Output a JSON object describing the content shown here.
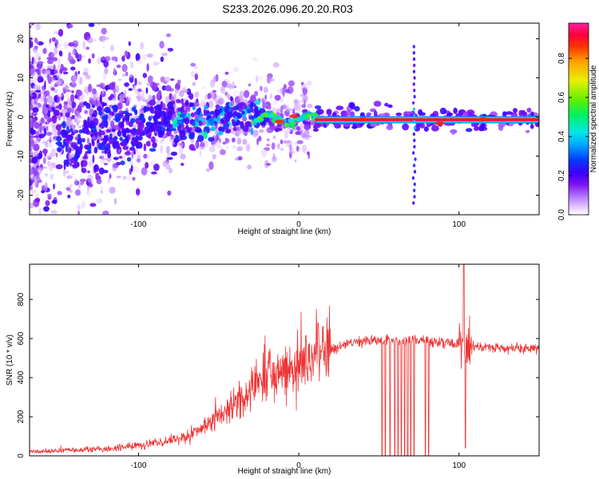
{
  "figure_title": "S233.2026.096.20.20.R03",
  "chart_data": [
    {
      "type": "heatmap",
      "id": "spectrogram",
      "xlabel": "Height of straight line (km)",
      "ylabel": "Frequency (Hz)",
      "xlim": [
        -168,
        150
      ],
      "ylim": [
        -25,
        24
      ],
      "xticks": [
        -100,
        0,
        100
      ],
      "yticks": [
        -20,
        -10,
        0,
        10,
        20
      ],
      "colorbar": {
        "label": "Normalized spectral amplitude",
        "range": [
          0.0,
          0.98
        ],
        "ticks": [
          0.0,
          0.2,
          0.4,
          0.6,
          0.8
        ],
        "colors": [
          "#ffffff",
          "#e6c8ff",
          "#b070ff",
          "#7a10f0",
          "#3a00ff",
          "#0040ff",
          "#00a0ff",
          "#00e8e8",
          "#00f060",
          "#60f000",
          "#e8f000",
          "#ffa000",
          "#ff3000",
          "#ff0040",
          "#ff20a0"
        ]
      },
      "features": {
        "carrier_line": {
          "x_start": 10,
          "x_end": 150,
          "frequency": -0.7,
          "amplitude": 0.95
        },
        "vertical_artifact": {
          "x": 72,
          "frequency_range": [
            -22,
            19
          ]
        },
        "scatter_region": {
          "x_range": [
            -168,
            -30
          ],
          "frequency_spread": 24
        }
      }
    },
    {
      "type": "line",
      "id": "snr",
      "xlabel": "Height of straight line (km)",
      "ylabel": "SNR (10 * v/v)",
      "xlim": [
        -168,
        150
      ],
      "ylim": [
        0,
        980
      ],
      "xticks": [
        -100,
        0,
        100
      ],
      "yticks": [
        0,
        200,
        400,
        600,
        800
      ],
      "series": [
        {
          "name": "SNR",
          "color": "#ee3333",
          "x": [
            -168,
            -150,
            -120,
            -90,
            -70,
            -55,
            -45,
            -35,
            -25,
            -18,
            -10,
            -5,
            0,
            5,
            10,
            15,
            20,
            25,
            30,
            40,
            50,
            60,
            70,
            80,
            90,
            100,
            103,
            105,
            110,
            120,
            130,
            140,
            150
          ],
          "values": [
            20,
            25,
            35,
            60,
            100,
            160,
            230,
            310,
            370,
            410,
            420,
            430,
            450,
            470,
            500,
            520,
            540,
            560,
            575,
            585,
            590,
            590,
            590,
            590,
            580,
            570,
            560,
            560,
            555,
            555,
            550,
            550,
            550
          ]
        }
      ],
      "dropouts_x": [
        52,
        54,
        57,
        60,
        62,
        64,
        66,
        68,
        70,
        72,
        79,
        81
      ],
      "spikes": [
        {
          "x": 12,
          "value": 680
        },
        {
          "x": 103,
          "value": 980
        },
        {
          "x": 104,
          "value": 40
        }
      ]
    }
  ]
}
